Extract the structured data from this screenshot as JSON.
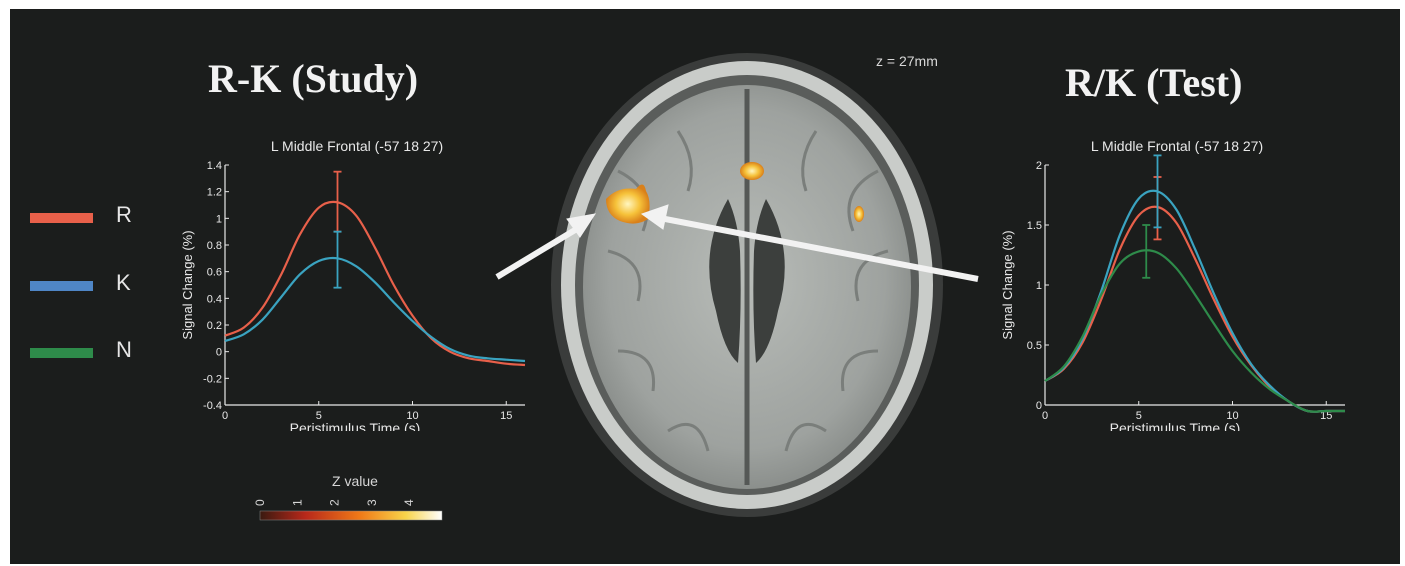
{
  "titles": {
    "left": "R-K (Study)",
    "right": "R/K (Test)",
    "slice": "z = 27mm"
  },
  "legend": [
    {
      "label": "R",
      "color": "#e8604a"
    },
    {
      "label": "K",
      "color": "#4f86c6"
    },
    {
      "label": "N",
      "color": "#2e8b4a"
    }
  ],
  "colorbar": {
    "title": "Z value",
    "ticks": [
      "0",
      "1",
      "2",
      "3",
      "4"
    ],
    "range": [
      0,
      4
    ]
  },
  "chart_data": [
    {
      "type": "line",
      "title": "L Middle Frontal (-57 18 27)",
      "xlabel": "Peristimulus Time (s)",
      "ylabel": "Signal Change (%)",
      "xlim": [
        0,
        16
      ],
      "ylim": [
        -0.4,
        1.4
      ],
      "xticks": [
        "0",
        "5",
        "10",
        "15"
      ],
      "yticks": [
        "-0.4",
        "-0.2",
        "0",
        "0.2",
        "0.4",
        "0.6",
        "0.8",
        "1",
        "1.2",
        "1.4"
      ],
      "series": [
        {
          "name": "R",
          "color": "#e8604a",
          "x": [
            0,
            1,
            2,
            3,
            4,
            5,
            6,
            7,
            8,
            9,
            10,
            11,
            12,
            13,
            14,
            15,
            16
          ],
          "y": [
            0.12,
            0.18,
            0.33,
            0.58,
            0.88,
            1.08,
            1.12,
            1.02,
            0.78,
            0.5,
            0.27,
            0.1,
            0.0,
            -0.05,
            -0.07,
            -0.09,
            -0.1
          ],
          "error": {
            "x": 6,
            "low": 0.9,
            "high": 1.35
          }
        },
        {
          "name": "K",
          "color": "#3aa3c0",
          "x": [
            0,
            1,
            2,
            3,
            4,
            5,
            6,
            7,
            8,
            9,
            10,
            11,
            12,
            13,
            14,
            15,
            16
          ],
          "y": [
            0.08,
            0.13,
            0.24,
            0.41,
            0.58,
            0.68,
            0.7,
            0.64,
            0.52,
            0.37,
            0.23,
            0.11,
            0.02,
            -0.03,
            -0.05,
            -0.06,
            -0.07
          ],
          "error": {
            "x": 6,
            "low": 0.48,
            "high": 0.9
          }
        }
      ]
    },
    {
      "type": "line",
      "title": "L Middle Frontal (-57 18 27)",
      "xlabel": "Peristimulus Time (s)",
      "ylabel": "Signal Change (%)",
      "xlim": [
        0,
        16
      ],
      "ylim": [
        0,
        2
      ],
      "xticks": [
        "0",
        "5",
        "10",
        "15"
      ],
      "yticks": [
        "0",
        "0.5",
        "1",
        "1.5",
        "2"
      ],
      "series": [
        {
          "name": "R",
          "color": "#e8604a",
          "x": [
            0,
            1,
            2,
            3,
            4,
            5,
            6,
            7,
            8,
            9,
            10,
            11,
            12,
            13,
            14,
            15,
            16
          ],
          "y": [
            0.2,
            0.3,
            0.52,
            0.88,
            1.3,
            1.58,
            1.65,
            1.52,
            1.22,
            0.88,
            0.57,
            0.33,
            0.15,
            0.03,
            -0.05,
            -0.09,
            -0.12
          ],
          "error": {
            "x": 6,
            "low": 1.38,
            "high": 1.9
          }
        },
        {
          "name": "K",
          "color": "#3aa3c0",
          "x": [
            0,
            1,
            2,
            3,
            4,
            5,
            6,
            7,
            8,
            9,
            10,
            11,
            12,
            13,
            14,
            15,
            16
          ],
          "y": [
            0.2,
            0.31,
            0.55,
            0.95,
            1.42,
            1.72,
            1.78,
            1.63,
            1.3,
            0.93,
            0.6,
            0.34,
            0.16,
            0.03,
            -0.05,
            -0.1,
            -0.13
          ],
          "error": {
            "x": 6,
            "low": 1.48,
            "high": 2.08
          }
        },
        {
          "name": "N",
          "color": "#2e8b4a",
          "x": [
            0,
            1,
            2,
            3,
            4,
            5,
            6,
            7,
            8,
            9,
            10,
            11,
            12,
            13,
            14,
            15,
            16
          ],
          "y": [
            0.2,
            0.32,
            0.57,
            0.92,
            1.18,
            1.28,
            1.27,
            1.14,
            0.92,
            0.68,
            0.45,
            0.27,
            0.13,
            0.03,
            -0.05,
            -0.1,
            -0.13
          ],
          "error": {
            "x": 5.4,
            "low": 1.06,
            "high": 1.5
          }
        }
      ]
    }
  ]
}
